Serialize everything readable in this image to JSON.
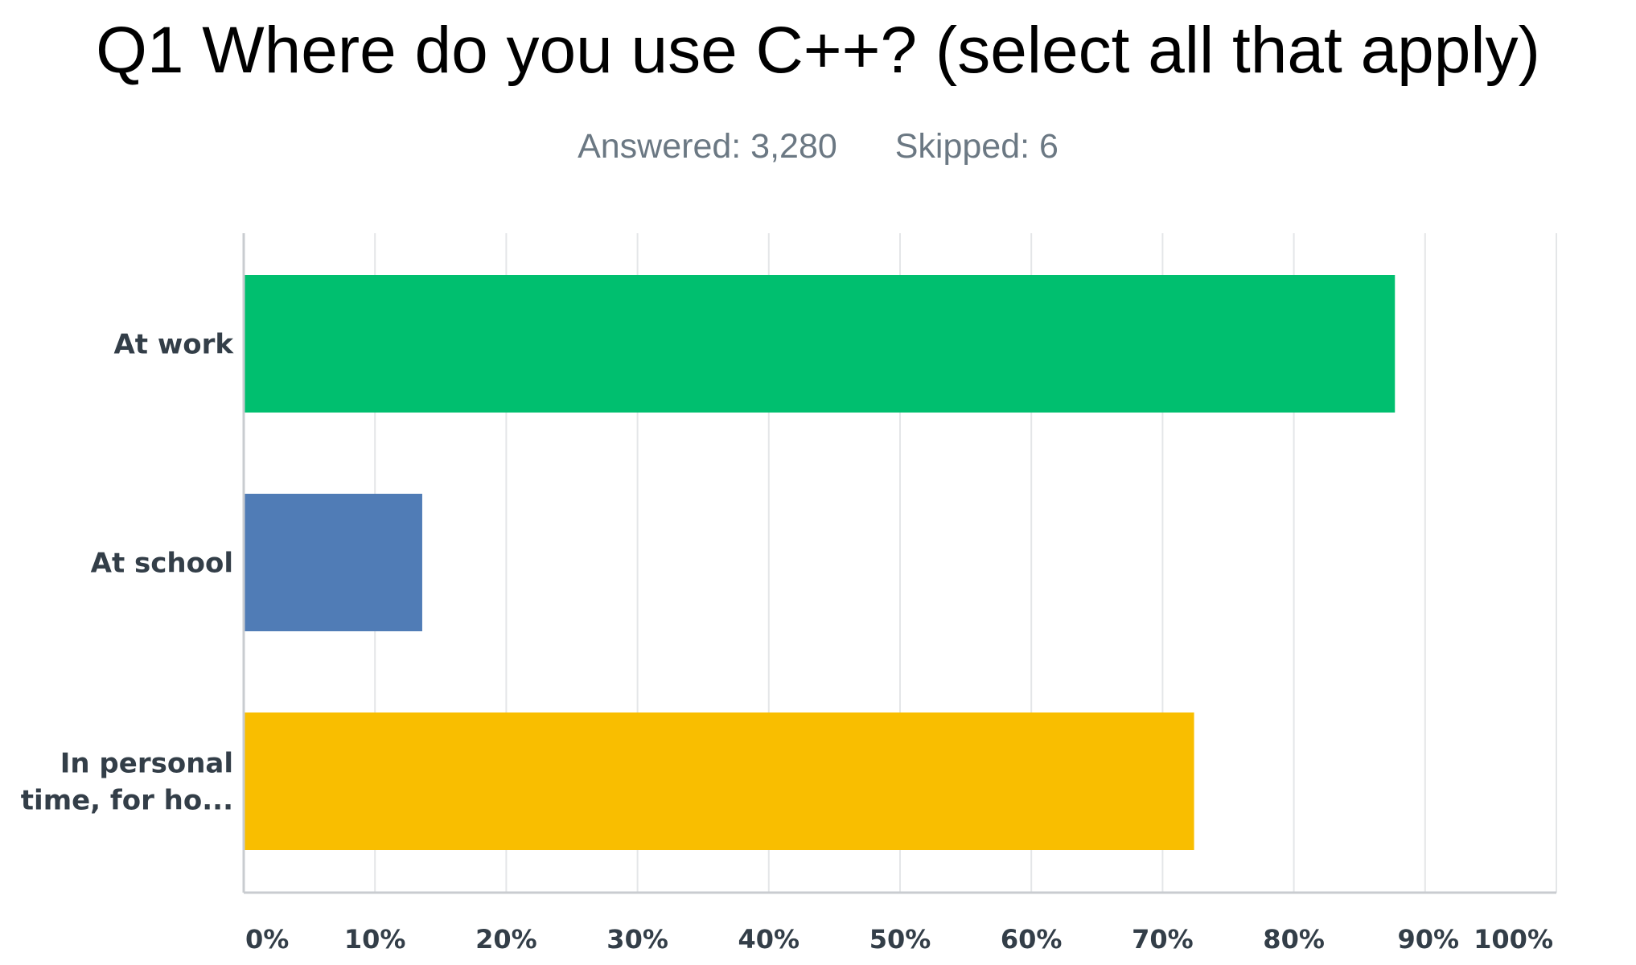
{
  "chart_data": {
    "type": "bar",
    "orientation": "horizontal",
    "title": "Q1 Where do you use C++? (select all that apply)",
    "answered_label": "Answered: 3,280",
    "skipped_label": "Skipped: 6",
    "categories": [
      {
        "label_lines": [
          "At work"
        ]
      },
      {
        "label_lines": [
          "At school"
        ]
      },
      {
        "label_lines": [
          "In personal",
          "time, for ho..."
        ]
      }
    ],
    "values": [
      87.7,
      13.6,
      72.4
    ],
    "colors": [
      "#00bf6f",
      "#507cb6",
      "#f9be00"
    ],
    "xlim": [
      0,
      100
    ],
    "ticks": [
      0,
      10,
      20,
      30,
      40,
      50,
      60,
      70,
      80,
      90,
      100
    ],
    "tick_labels": [
      "0%",
      "10%",
      "20%",
      "30%",
      "40%",
      "50%",
      "60%",
      "70%",
      "80%",
      "90%",
      "100%"
    ],
    "grid": true,
    "legend": "none"
  }
}
